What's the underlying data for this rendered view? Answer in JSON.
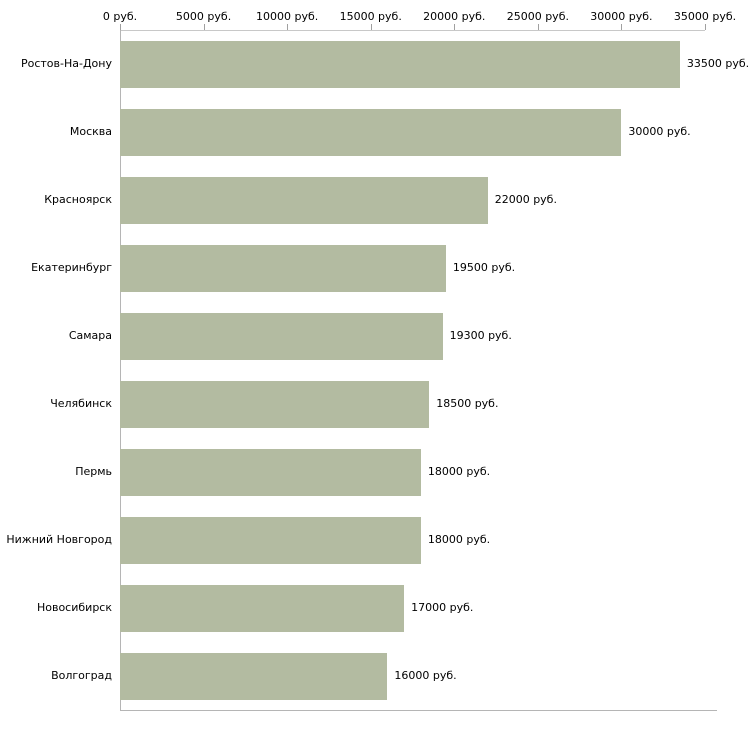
{
  "chart_data": {
    "type": "bar",
    "orientation": "horizontal",
    "title": "",
    "xlabel": "",
    "ylabel": "",
    "xlim": [
      0,
      35000
    ],
    "grid": false,
    "bar_color": "#b3bba1",
    "x_tick_values": [
      0,
      5000,
      10000,
      15000,
      20000,
      25000,
      30000,
      35000
    ],
    "x_tick_labels": [
      "0 руб.",
      "5000 руб.",
      "10000 руб.",
      "15000 руб.",
      "20000 руб.",
      "25000 руб.",
      "30000 руб.",
      "35000 руб."
    ],
    "categories": [
      "Ростов-На-Дону",
      "Москва",
      "Красноярск",
      "Екатеринбург",
      "Самара",
      "Челябинск",
      "Пермь",
      "Нижний Новгород",
      "Новосибирск",
      "Волгоград"
    ],
    "values": [
      33500,
      30000,
      22000,
      19500,
      19300,
      18500,
      18000,
      18000,
      17000,
      16000
    ],
    "value_labels": [
      "33500 руб.",
      "30000 руб.",
      "22000 руб.",
      "19500 руб.",
      "19300 руб.",
      "18500 руб.",
      "18000 руб.",
      "18000 руб.",
      "17000 руб.",
      "16000 руб."
    ]
  },
  "layout_hints": {
    "legend": "none",
    "value_labels_position": "right-of-bar"
  }
}
